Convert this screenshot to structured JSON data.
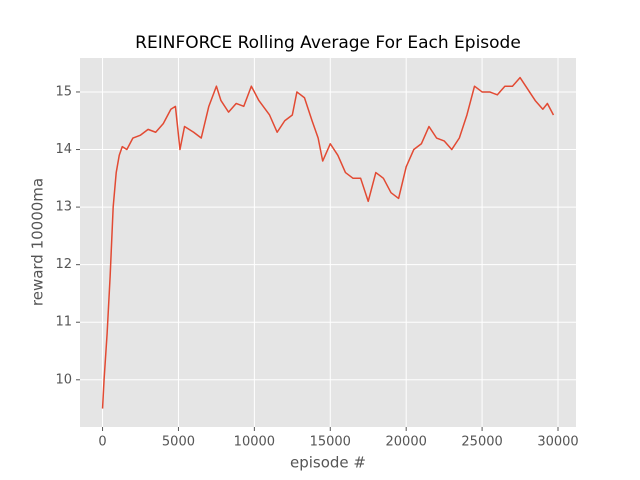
{
  "chart_data": {
    "type": "line",
    "title": "REINFORCE Rolling Average For Each Episode",
    "x_label": "episode #",
    "y_label": "reward 10000ma",
    "color": "#E24A33",
    "grid": true,
    "x": [
      0,
      100,
      300,
      500,
      700,
      900,
      1100,
      1300,
      1600,
      2000,
      2500,
      3000,
      3500,
      4000,
      4500,
      4800,
      5100,
      5400,
      6000,
      6500,
      7000,
      7500,
      7800,
      8300,
      8800,
      9300,
      9800,
      10300,
      11000,
      11500,
      12000,
      12500,
      12800,
      13300,
      13800,
      14200,
      14500,
      15000,
      15500,
      16000,
      16500,
      17000,
      17500,
      18000,
      18500,
      19000,
      19500,
      20000,
      20500,
      21000,
      21500,
      22000,
      22500,
      23000,
      23500,
      24000,
      24500,
      25000,
      25500,
      26000,
      26500,
      27000,
      27500,
      28000,
      28500,
      29000,
      29300,
      29700
    ],
    "values": [
      9.5,
      10.0,
      10.8,
      11.8,
      13.0,
      13.6,
      13.9,
      14.05,
      14.0,
      14.2,
      14.25,
      14.35,
      14.3,
      14.45,
      14.7,
      14.75,
      14.0,
      14.4,
      14.3,
      14.2,
      14.75,
      15.1,
      14.85,
      14.65,
      14.8,
      14.75,
      15.1,
      14.85,
      14.6,
      14.3,
      14.5,
      14.6,
      15.0,
      14.9,
      14.5,
      14.2,
      13.8,
      14.1,
      13.9,
      13.6,
      13.5,
      13.5,
      13.1,
      13.6,
      13.5,
      13.25,
      13.15,
      13.7,
      14.0,
      14.1,
      14.4,
      14.2,
      14.15,
      14.0,
      14.2,
      14.6,
      15.1,
      15.0,
      15.0,
      14.95,
      15.1,
      15.1,
      15.25,
      15.05,
      14.85,
      14.7,
      14.8,
      14.6
    ],
    "xlim": [
      -1485,
      31185
    ],
    "ylim": [
      9.18,
      15.59
    ],
    "xticks": [
      0,
      5000,
      10000,
      15000,
      20000,
      25000,
      30000
    ],
    "yticks": [
      10,
      11,
      12,
      13,
      14,
      15
    ]
  }
}
